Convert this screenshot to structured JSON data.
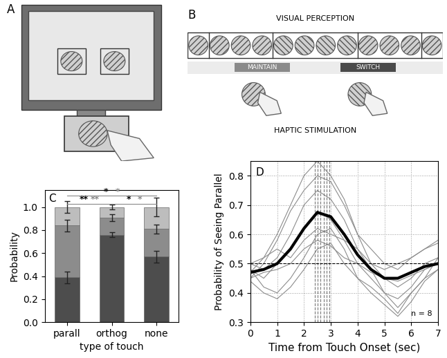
{
  "panels": {
    "A": {
      "label": "A"
    },
    "B": {
      "label": "B",
      "top_text": "VISUAL PERCEPTION",
      "bottom_text": "HAPTIC STIMULATION",
      "events": [
        {
          "text": "MAINTAIN",
          "color": "#8a8a8a"
        },
        {
          "text": "SWITCH",
          "color": "#4a4a4a"
        }
      ]
    }
  },
  "chart_data": [
    {
      "panel": "C",
      "type": "bar",
      "stacked": true,
      "categories": [
        "parall",
        "orthog",
        "none"
      ],
      "xlabel": "type of touch",
      "ylabel": "Probability",
      "ylim": [
        0.0,
        1.15
      ],
      "yticks": [
        0.0,
        0.2,
        0.4,
        0.6,
        0.8,
        1.0
      ],
      "series": [
        {
          "color": "#4d4d4d",
          "values": [
            0.39,
            0.76,
            0.57
          ],
          "errors": [
            0.05,
            0.02,
            0.05
          ]
        },
        {
          "color": "#8c8c8c",
          "values": [
            0.45,
            0.15,
            0.24
          ],
          "errors": [
            0.05,
            0.03,
            0.04
          ]
        },
        {
          "color": "#bdbdbd",
          "values": [
            0.16,
            0.09,
            0.19
          ],
          "errors": [
            0.05,
            0.02,
            0.08
          ]
        }
      ],
      "significance": [
        {
          "from": "parall",
          "to": "orthog",
          "labels": [
            "**",
            "**"
          ]
        },
        {
          "from": "parall",
          "to": "none",
          "labels": [
            "*",
            "*"
          ]
        },
        {
          "from": "orthog",
          "to": "none",
          "labels": [
            "*",
            "*"
          ]
        }
      ]
    },
    {
      "panel": "D",
      "type": "line",
      "xlabel": "Time from Touch Onset (sec)",
      "ylabel": "Probability of Seeing Parallel",
      "xlim": [
        0,
        7
      ],
      "ylim": [
        0.3,
        0.85
      ],
      "xticks": [
        0,
        1,
        2,
        3,
        4,
        5,
        6,
        7
      ],
      "yticks": [
        0.3,
        0.4,
        0.5,
        0.6,
        0.7,
        0.8
      ],
      "grid": true,
      "annotations": [
        "n = 8"
      ],
      "peak_x": [
        2.4,
        2.5,
        2.6,
        2.75,
        2.85,
        2.95
      ],
      "chance_level": 0.5,
      "x": [
        0,
        0.5,
        1,
        1.5,
        2,
        2.5,
        3,
        3.5,
        4,
        4.5,
        5,
        5.5,
        6,
        6.5,
        7
      ],
      "series": [
        {
          "color": "#8c8c8c",
          "values": [
            0.47,
            0.52,
            0.6,
            0.7,
            0.8,
            0.85,
            0.8,
            0.72,
            0.6,
            0.55,
            0.5,
            0.48,
            0.52,
            0.55,
            0.57
          ]
        },
        {
          "color": "#8c8c8c",
          "values": [
            0.45,
            0.5,
            0.58,
            0.68,
            0.75,
            0.8,
            0.78,
            0.7,
            0.6,
            0.5,
            0.45,
            0.42,
            0.45,
            0.5,
            0.52
          ]
        },
        {
          "color": "#8c8c8c",
          "values": [
            0.5,
            0.48,
            0.52,
            0.6,
            0.7,
            0.75,
            0.72,
            0.65,
            0.55,
            0.48,
            0.4,
            0.38,
            0.42,
            0.48,
            0.5
          ]
        },
        {
          "color": "#8c8c8c",
          "values": [
            0.48,
            0.45,
            0.5,
            0.55,
            0.62,
            0.68,
            0.65,
            0.58,
            0.5,
            0.45,
            0.4,
            0.35,
            0.4,
            0.45,
            0.48
          ]
        },
        {
          "color": "#8c8c8c",
          "values": [
            0.5,
            0.52,
            0.55,
            0.52,
            0.58,
            0.62,
            0.6,
            0.58,
            0.55,
            0.5,
            0.48,
            0.5,
            0.52,
            0.55,
            0.58
          ]
        },
        {
          "color": "#8c8c8c",
          "values": [
            0.45,
            0.47,
            0.48,
            0.5,
            0.55,
            0.58,
            0.56,
            0.52,
            0.5,
            0.47,
            0.45,
            0.44,
            0.46,
            0.48,
            0.5
          ]
        },
        {
          "color": "#8c8c8c",
          "values": [
            0.48,
            0.42,
            0.4,
            0.45,
            0.52,
            0.6,
            0.62,
            0.55,
            0.45,
            0.42,
            0.38,
            0.33,
            0.4,
            0.45,
            0.52
          ]
        },
        {
          "color": "#8c8c8c",
          "values": [
            0.44,
            0.4,
            0.38,
            0.42,
            0.48,
            0.55,
            0.57,
            0.5,
            0.45,
            0.4,
            0.36,
            0.32,
            0.37,
            0.44,
            0.48
          ]
        },
        {
          "color": "#000000",
          "values": [
            0.47,
            0.48,
            0.5,
            0.55,
            0.62,
            0.675,
            0.66,
            0.6,
            0.53,
            0.48,
            0.45,
            0.45,
            0.47,
            0.49,
            0.5
          ]
        }
      ]
    }
  ]
}
